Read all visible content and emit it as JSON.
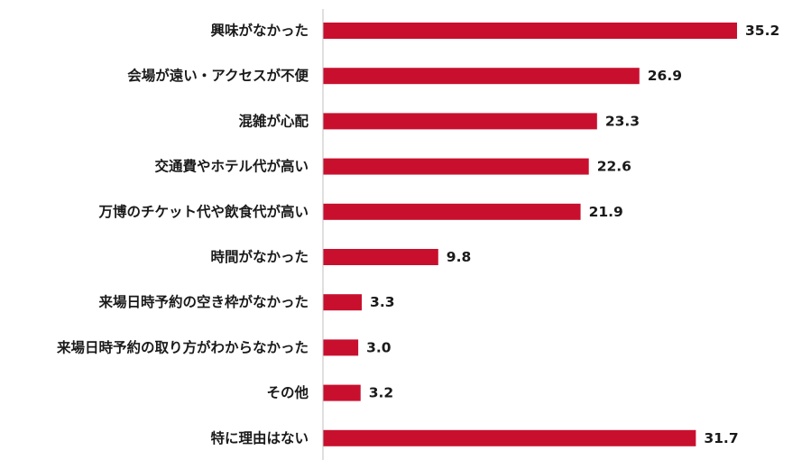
{
  "chart_data": {
    "type": "bar",
    "orientation": "horizontal",
    "categories": [
      "興味がなかった",
      "会場が遠い・アクセスが不便",
      "混雑が心配",
      "交通費やホテル代が高い",
      "万博のチケット代や飲食代が高い",
      "時間がなかった",
      "来場日時予約の空き枠がなかった",
      "来場日時予約の取り方がわからなかった",
      "その他",
      "特に理由はない"
    ],
    "values": [
      35.2,
      26.9,
      23.3,
      22.6,
      21.9,
      9.8,
      3.3,
      3.0,
      3.2,
      31.7
    ],
    "value_labels": [
      "35.2",
      "26.9",
      "23.3",
      "22.6",
      "21.9",
      "9.8",
      "3.3",
      "3.0",
      "3.2",
      "31.7"
    ],
    "xlim": [
      0,
      35.2
    ],
    "grid": false,
    "legend": "none",
    "colors": {
      "bar": "#c8102e",
      "axis": "#bfbfbf",
      "text": "#1a1a1a"
    }
  }
}
